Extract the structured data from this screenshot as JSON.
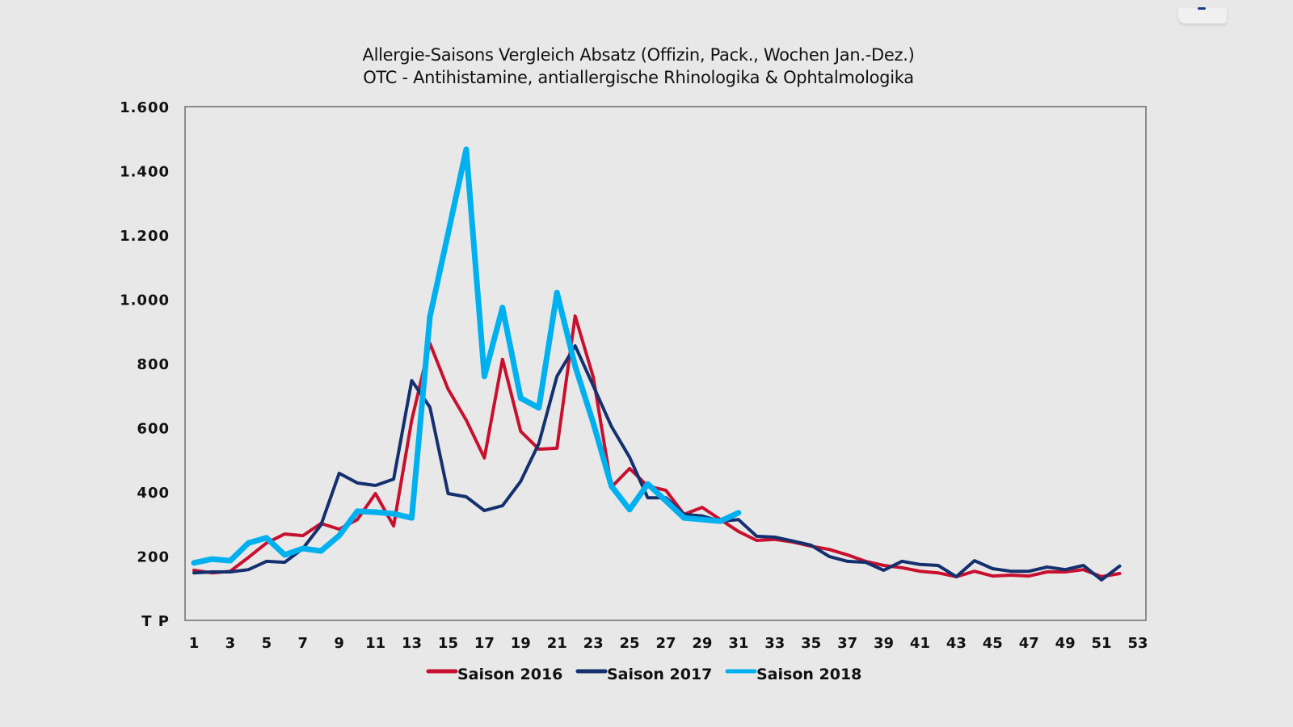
{
  "chart_data": {
    "type": "line",
    "title": "Allergie-Saisons Vergleich Absatz (Offizin, Pack., Wochen Jan.-Dez.)",
    "subtitle": "OTC - Antihistamine, antiallergische Rhinologika & Ophtalmologika",
    "xlabel": "",
    "ylabel": "T P",
    "ylim": [
      0,
      1600
    ],
    "xlim": [
      1,
      53
    ],
    "grid": false,
    "legend_position": "bottom",
    "y_ticks": [
      {
        "value": 0,
        "label": "T P"
      },
      {
        "value": 200,
        "label": "200"
      },
      {
        "value": 400,
        "label": "400"
      },
      {
        "value": 600,
        "label": "600"
      },
      {
        "value": 800,
        "label": "800"
      },
      {
        "value": 1000,
        "label": "1.000"
      },
      {
        "value": 1200,
        "label": "1.200"
      },
      {
        "value": 1400,
        "label": "1.400"
      },
      {
        "value": 1600,
        "label": "1.600"
      }
    ],
    "x_ticks": [
      "1",
      "3",
      "5",
      "7",
      "9",
      "11",
      "13",
      "15",
      "17",
      "19",
      "21",
      "23",
      "25",
      "27",
      "29",
      "31",
      "33",
      "35",
      "37",
      "39",
      "41",
      "43",
      "45",
      "47",
      "49",
      "51",
      "53"
    ],
    "series": [
      {
        "name": "Saison 2016",
        "color": "#c8102e",
        "x_start": 1,
        "values": [
          156,
          148,
          153,
          196,
          241,
          269,
          264,
          302,
          284,
          314,
          395,
          294,
          624,
          863,
          720,
          624,
          506,
          813,
          589,
          533,
          536,
          948,
          757,
          415,
          473,
          418,
          405,
          330,
          352,
          314,
          277,
          249,
          252,
          244,
          231,
          221,
          204,
          184,
          171,
          164,
          153,
          148,
          136,
          153,
          138,
          141,
          138,
          151,
          151,
          158,
          136,
          146
        ]
      },
      {
        "name": "Saison 2017",
        "color": "#14306e",
        "x_start": 1,
        "values": [
          148,
          151,
          151,
          158,
          184,
          181,
          224,
          297,
          458,
          428,
          420,
          440,
          747,
          664,
          395,
          385,
          342,
          357,
          433,
          551,
          760,
          855,
          730,
          604,
          508,
          382,
          382,
          330,
          325,
          309,
          314,
          262,
          259,
          247,
          234,
          199,
          184,
          181,
          156,
          184,
          174,
          171,
          136,
          186,
          161,
          153,
          153,
          166,
          158,
          171,
          126,
          169
        ]
      },
      {
        "name": "Saison 2018",
        "color": "#00b0ef",
        "x_start": 1,
        "values": [
          179,
          191,
          186,
          241,
          257,
          204,
          224,
          216,
          264,
          340,
          337,
          332,
          319,
          946,
          1205,
          1467,
          760,
          974,
          692,
          662,
          1021,
          792,
          614,
          418,
          345,
          425,
          372,
          319,
          314,
          309,
          335
        ]
      }
    ]
  }
}
